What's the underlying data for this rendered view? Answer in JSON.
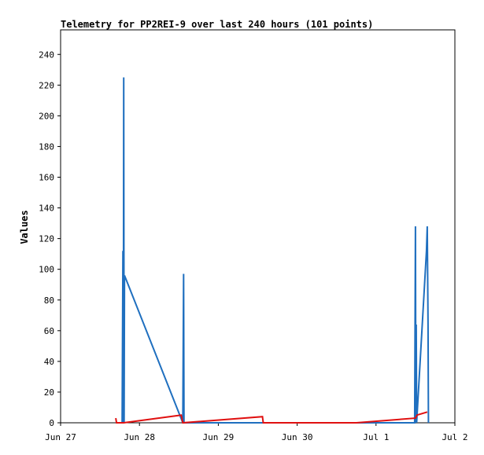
{
  "chart_data": {
    "type": "line",
    "title": "Telemetry for PP2REI-9 over last 240 hours (101 points)",
    "xlabel": "",
    "ylabel": "Values",
    "x_ticks": [
      "Jun 27",
      "Jun 28",
      "Jun 29",
      "Jun 30",
      "Jul 1",
      "Jul 2"
    ],
    "y_ticks": [
      0,
      20,
      40,
      60,
      80,
      100,
      120,
      140,
      160,
      180,
      200,
      220,
      240
    ],
    "xlim": [
      0,
      5
    ],
    "ylim": [
      0,
      256
    ],
    "grid": false,
    "legend": "none",
    "series": [
      {
        "color": "#1f6fbf",
        "points": [
          [
            0.78,
            0
          ],
          [
            0.79,
            112
          ],
          [
            0.795,
            0
          ],
          [
            0.8,
            225
          ],
          [
            0.805,
            0
          ],
          [
            0.81,
            96
          ],
          [
            1.55,
            0
          ],
          [
            1.56,
            97
          ],
          [
            1.565,
            0
          ],
          [
            4.49,
            0
          ],
          [
            4.5,
            128
          ],
          [
            4.505,
            0
          ],
          [
            4.51,
            64
          ],
          [
            4.515,
            0
          ],
          [
            4.64,
            112
          ],
          [
            4.65,
            128
          ],
          [
            4.66,
            64
          ],
          [
            4.665,
            0
          ]
        ]
      },
      {
        "color": "#e01010",
        "points": [
          [
            0.7,
            3
          ],
          [
            0.71,
            0
          ],
          [
            0.8,
            0
          ],
          [
            1.53,
            5
          ],
          [
            1.55,
            0
          ],
          [
            2.56,
            4
          ],
          [
            2.57,
            0
          ],
          [
            3.0,
            0
          ],
          [
            3.75,
            0
          ],
          [
            4.5,
            3
          ],
          [
            4.52,
            5
          ],
          [
            4.65,
            7
          ]
        ]
      }
    ]
  }
}
